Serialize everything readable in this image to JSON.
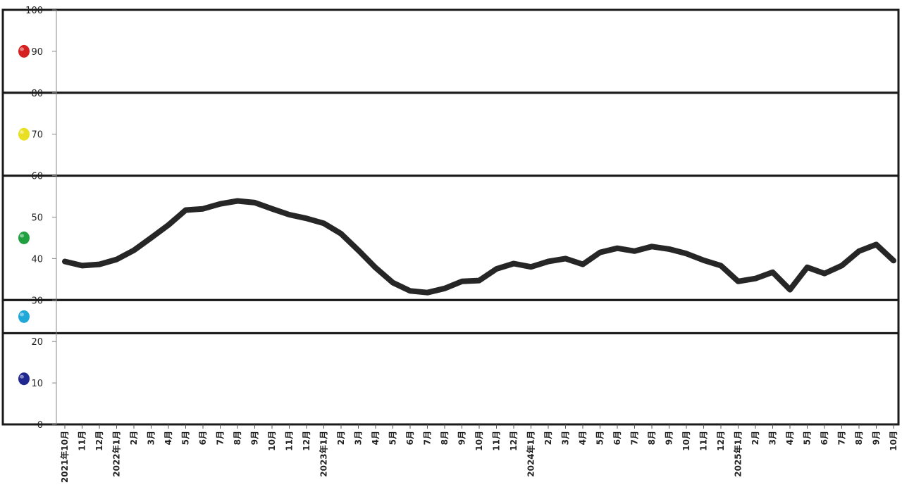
{
  "chart_data": {
    "type": "line",
    "title": "",
    "xlabel": "",
    "ylabel": "",
    "ylim": [
      0,
      100
    ],
    "y_ticks": [
      "0",
      "10",
      "20",
      "30",
      "40",
      "50",
      "60",
      "70",
      "80",
      "90",
      "100"
    ],
    "grid": false,
    "legend": "none",
    "zones": [
      {
        "from": 80,
        "to": 100,
        "color": "#d42020"
      },
      {
        "from": 60,
        "to": 80,
        "color": "#e8e020"
      },
      {
        "from": 30,
        "to": 60,
        "color": "#20a040"
      },
      {
        "from": 22,
        "to": 30,
        "color": "#20a8d8"
      },
      {
        "from": 0,
        "to": 22,
        "color": "#202890"
      }
    ],
    "categories": [
      "2021年10月",
      "11月",
      "12月",
      "2022年1月",
      "2月",
      "3月",
      "4月",
      "5月",
      "6月",
      "7月",
      "8月",
      "9月",
      "10月",
      "11月",
      "12月",
      "2023年1月",
      "2月",
      "3月",
      "4月",
      "5月",
      "6月",
      "7月",
      "8月",
      "9月",
      "10月",
      "11月",
      "12月",
      "2024年1月",
      "2月",
      "3月",
      "4月",
      "5月",
      "6月",
      "7月",
      "8月",
      "9月",
      "10月",
      "11月",
      "12月",
      "2025年1月",
      "2月",
      "3月",
      "4月",
      "5月",
      "6月",
      "7月",
      "8月",
      "9月",
      "10月"
    ],
    "series": [
      {
        "values": [
          39.3,
          38.3,
          38.6,
          39.8,
          42.0,
          45.0,
          48.1,
          51.7,
          52.0,
          53.2,
          53.9,
          53.5,
          52.0,
          50.6,
          49.7,
          48.5,
          46.0,
          42.0,
          37.8,
          34.2,
          32.2,
          31.8,
          32.8,
          34.5,
          34.7,
          37.5,
          38.8,
          38.0,
          39.3,
          40.0,
          38.6,
          41.5,
          42.5,
          41.8,
          42.9,
          42.3,
          41.2,
          39.6,
          38.3,
          34.5,
          35.2,
          36.7,
          32.5,
          37.9,
          36.4,
          38.3,
          41.8,
          43.4,
          39.5
        ],
        "color": "#262626"
      }
    ]
  }
}
